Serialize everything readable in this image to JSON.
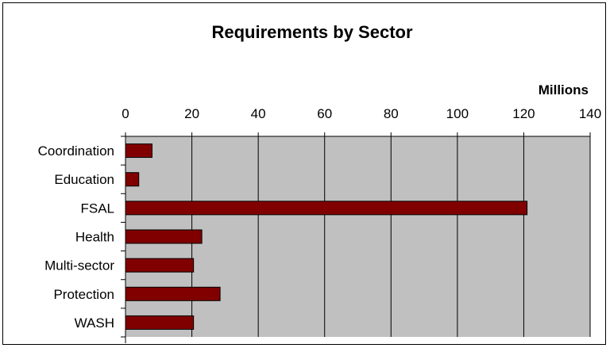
{
  "chart_data": {
    "type": "bar",
    "orientation": "horizontal",
    "title": "Requirements by Sector",
    "unit_label": "Millions",
    "categories": [
      "Coordination",
      "Education",
      "FSAL",
      "Health",
      "Multi-sector",
      "Protection",
      "WASH"
    ],
    "values": [
      8,
      4,
      121,
      23,
      20.5,
      28.5,
      20.5
    ],
    "xlim": [
      0,
      140
    ],
    "xticks": [
      0,
      20,
      40,
      60,
      80,
      100,
      120,
      140
    ],
    "x_axis_position": "top",
    "grid": true,
    "legend": "none",
    "colors": {
      "bar_fill": "#800000",
      "bar_stroke": "#000000",
      "plot_background": "#c0c0c0",
      "gridline": "#000000"
    }
  }
}
